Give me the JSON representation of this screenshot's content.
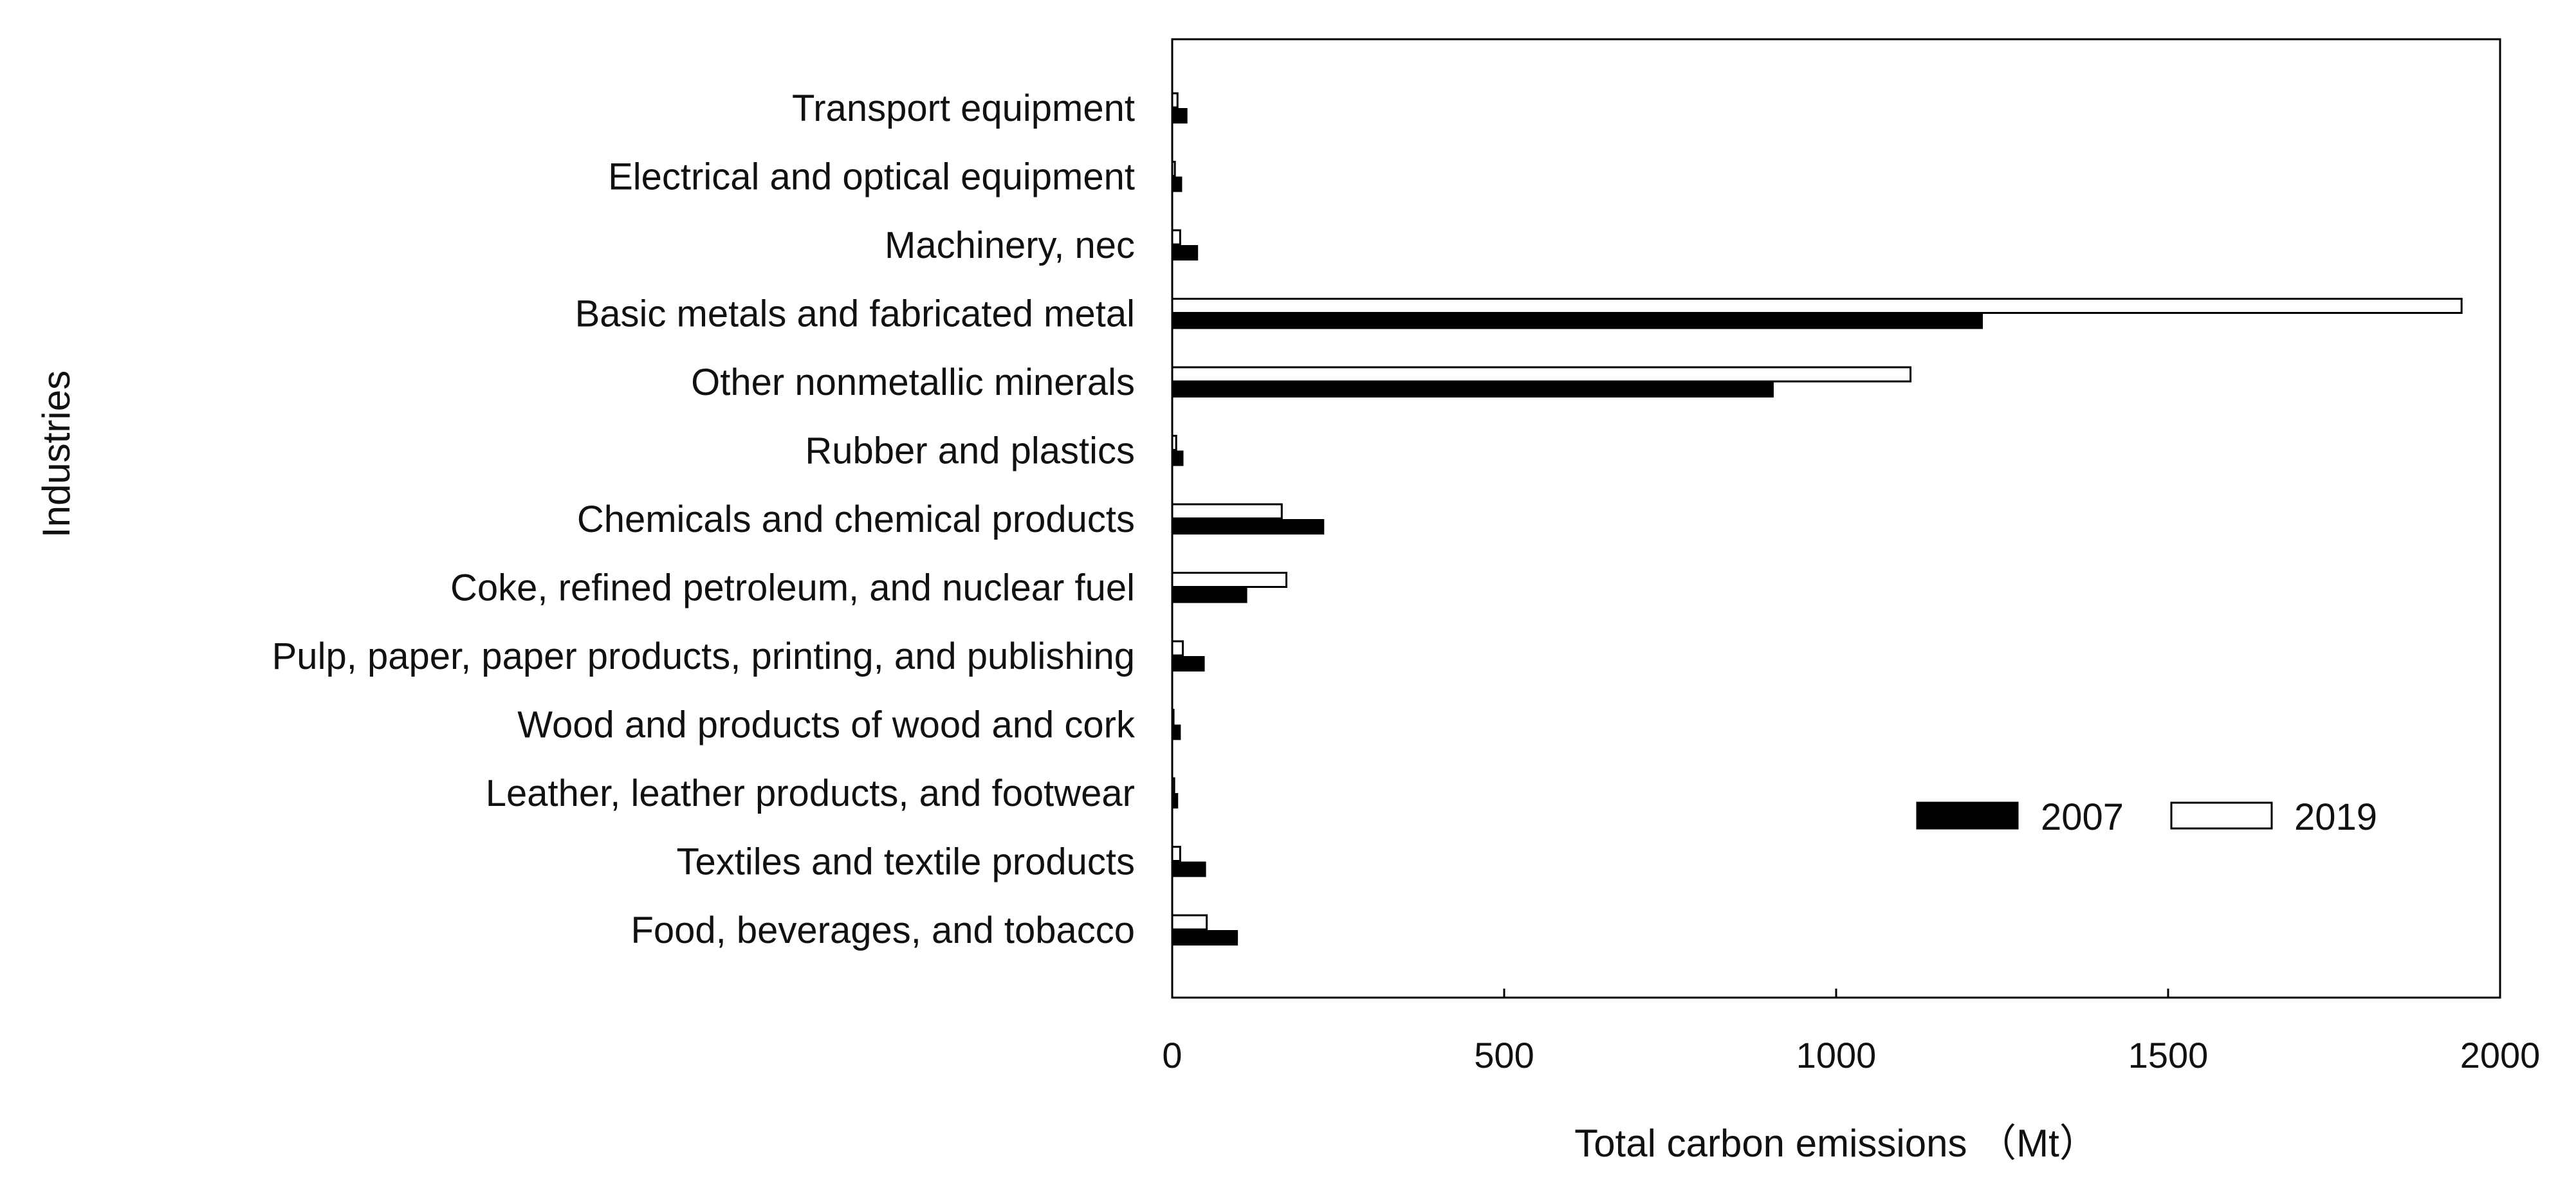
{
  "chart_data": {
    "type": "bar",
    "orientation": "horizontal",
    "title": "",
    "xlabel": "Total carbon emissions （Mt）",
    "ylabel": "Industries",
    "xlim": [
      0,
      2000
    ],
    "xticks": [
      "0",
      "500",
      "1000",
      "1500",
      "2000"
    ],
    "grid": false,
    "legend_placement": "lower-right",
    "categories": [
      "Food, beverages, and tobacco",
      "Textiles and textile products",
      "Leather, leather products, and footwear",
      "Wood and products of wood and cork",
      "Pulp, paper, paper products, printing, and publishing",
      "Coke, refined petroleum, and nuclear fuel",
      "Chemicals and chemical products",
      "Rubber and plastics",
      "Other nonmetallic minerals",
      "Basic metals and fabricated metal",
      "Machinery, nec",
      "Electrical and optical equipment",
      "Transport equipment"
    ],
    "series": [
      {
        "name": "2007",
        "color": "#000000",
        "values": [
          98,
          50,
          8,
          12,
          48,
          112,
          228,
          16,
          905,
          1220,
          38,
          14,
          22
        ]
      },
      {
        "name": "2019",
        "color": "#ffffff",
        "values": [
          52,
          12,
          3,
          2,
          16,
          172,
          165,
          6,
          1112,
          1942,
          12,
          4,
          8
        ]
      }
    ]
  }
}
